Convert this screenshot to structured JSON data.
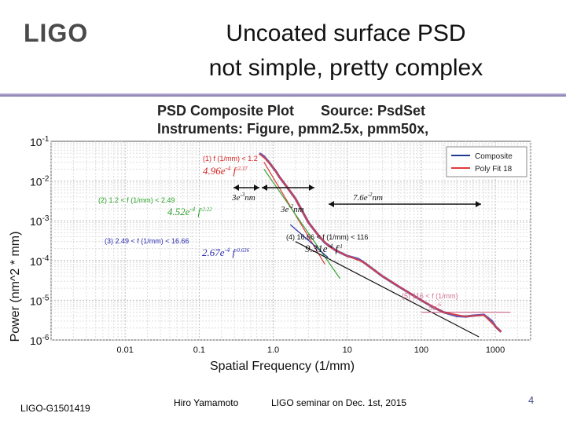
{
  "header": {
    "logo": "LIGO",
    "title_line1": "Uncoated surface PSD",
    "title_line2": "not simple, pretty complex"
  },
  "footer": {
    "doc_id": "LIGO-G1501419",
    "author": "Hiro Yamamoto",
    "event": "LIGO seminar on Dec. 1st, 2015",
    "page": "4"
  },
  "chart_data": {
    "type": "line",
    "title": "PSD Composite Plot",
    "source": "Source: PsdSet",
    "instruments": "Instruments: Figure, pmm2.5x, pmm50x,",
    "xlabel": "Spatial Frequency (1/mm)",
    "ylabel": "Power (nm^2 * mm)",
    "x_scale": "log",
    "y_scale": "log",
    "xlim": [
      0.001,
      3000
    ],
    "ylim": [
      1e-06,
      0.1
    ],
    "x_ticks": [
      {
        "value": 0.01,
        "label": "0.01"
      },
      {
        "value": 0.1,
        "label": "0.1"
      },
      {
        "value": 1,
        "label": "1.0"
      },
      {
        "value": 10,
        "label": "10"
      },
      {
        "value": 100,
        "label": "100"
      },
      {
        "value": 1000,
        "label": "1000"
      }
    ],
    "y_ticks": [
      {
        "value": 0.1,
        "base": "10",
        "exp": "-1"
      },
      {
        "value": 0.01,
        "base": "10",
        "exp": "-2"
      },
      {
        "value": 0.001,
        "base": "10",
        "exp": "-3"
      },
      {
        "value": 0.0001,
        "base": "10",
        "exp": "-4"
      },
      {
        "value": 1e-05,
        "base": "10",
        "exp": "-5"
      },
      {
        "value": 1e-06,
        "base": "10",
        "exp": "-6"
      }
    ],
    "grid": true,
    "legend": {
      "position": "top-right",
      "entries": [
        {
          "name": "Composite",
          "color": "#1f3a93"
        },
        {
          "name": "Poly Fit 18",
          "color": "#e03a3a"
        }
      ]
    },
    "series": [
      {
        "name": "Composite",
        "color": "#5a3d9a",
        "x": [
          0.65,
          0.75,
          0.9,
          1.1,
          1.2,
          1.5,
          2.0,
          2.49,
          3.0,
          4.0,
          5.0,
          7.0,
          10,
          14,
          16.66,
          20,
          30,
          50,
          70,
          100,
          116,
          150,
          200,
          300,
          400,
          500,
          700,
          900,
          1000,
          1200
        ],
        "y": [
          0.05,
          0.042,
          0.028,
          0.017,
          0.013,
          0.0075,
          0.0036,
          0.0017,
          0.0009,
          0.00045,
          0.00028,
          0.00018,
          0.00013,
          0.00011,
          9e-05,
          7e-05,
          4e-05,
          2.2e-05,
          1.5e-05,
          1e-05,
          8.5e-06,
          6.5e-06,
          5e-06,
          4e-06,
          3.9e-06,
          4.1e-06,
          4.3e-06,
          3e-06,
          2.2e-06,
          1.6e-06
        ]
      },
      {
        "name": "Poly Fit 18",
        "color": "#e03a3a",
        "x": [
          0.65,
          0.8,
          1.0,
          1.2,
          1.6,
          2.0,
          2.49,
          3.0,
          4.0,
          6.0,
          10,
          16.66,
          30,
          60,
          100,
          200,
          400,
          700,
          1000,
          1200
        ],
        "y": [
          0.048,
          0.035,
          0.022,
          0.013,
          0.0065,
          0.0035,
          0.0017,
          0.0009,
          0.00045,
          0.00021,
          0.00013,
          9e-05,
          4e-05,
          1.8e-05,
          1e-05,
          5e-06,
          3.9e-06,
          4.2e-06,
          2.2e-06,
          1.6e-06
        ]
      }
    ],
    "fits": [
      {
        "x": [
          0.75,
          5.0
        ],
        "y": [
          0.03,
          8e-05
        ],
        "color": "#e03a3a"
      },
      {
        "x": [
          0.75,
          8.0
        ],
        "y": [
          0.02,
          3.5e-05
        ],
        "color": "#3aa83a"
      },
      {
        "x": [
          1.7,
          5.5
        ],
        "y": [
          0.0008,
          0.00012
        ],
        "color": "#2a2a9a"
      },
      {
        "x": [
          2.0,
          600
        ],
        "y": [
          0.0003,
          1.2e-06
        ],
        "color": "#111111"
      },
      {
        "x": [
          100,
          1600
        ],
        "y": [
          5e-06,
          5e-06
        ],
        "color": "#d07090"
      }
    ],
    "annotations": [
      {
        "text": "(1) f (1/mm) < 1.2",
        "color": "#d82020"
      },
      {
        "text": "4.96e",
        "sup": "-4",
        "f": " f",
        "fsup": "-2.37",
        "color": "#d82020"
      },
      {
        "text": "(2) 1.2 < f (1/mm) < 2.49",
        "color": "#2aa02a"
      },
      {
        "text": "4.52e",
        "sup": "-4",
        "f": " f",
        "fsup": "-2.22",
        "color": "#2aa02a"
      },
      {
        "text": "(3) 2.49 < f (1/mm) < 16.66",
        "color": "#2a2ab0"
      },
      {
        "text": "2.67e",
        "sup": "-4",
        "f": " f",
        "fsup": "-0.636",
        "color": "#2a2ab0"
      },
      {
        "text": "(4) 16.66 < f (1/mm) < 116",
        "color": "#111111"
      },
      {
        "text": "9.31e",
        "sup": "-4",
        "f": " f",
        "fsup": "-1",
        "color": "#111111"
      },
      {
        "text": "(5) 116 < f (1/mm)",
        "color": "#d07090"
      },
      {
        "text": "5e",
        "sup": "-6",
        "color": "#d07090"
      },
      {
        "text": "3e",
        "sup": "-3",
        "unit": "nm",
        "color": "#111111"
      },
      {
        "text": "3e",
        "sup": "-2",
        "unit": "nm",
        "color": "#111111"
      },
      {
        "text": "7.6e",
        "sup": "-2",
        "unit": "nm",
        "color": "#111111"
      }
    ]
  }
}
